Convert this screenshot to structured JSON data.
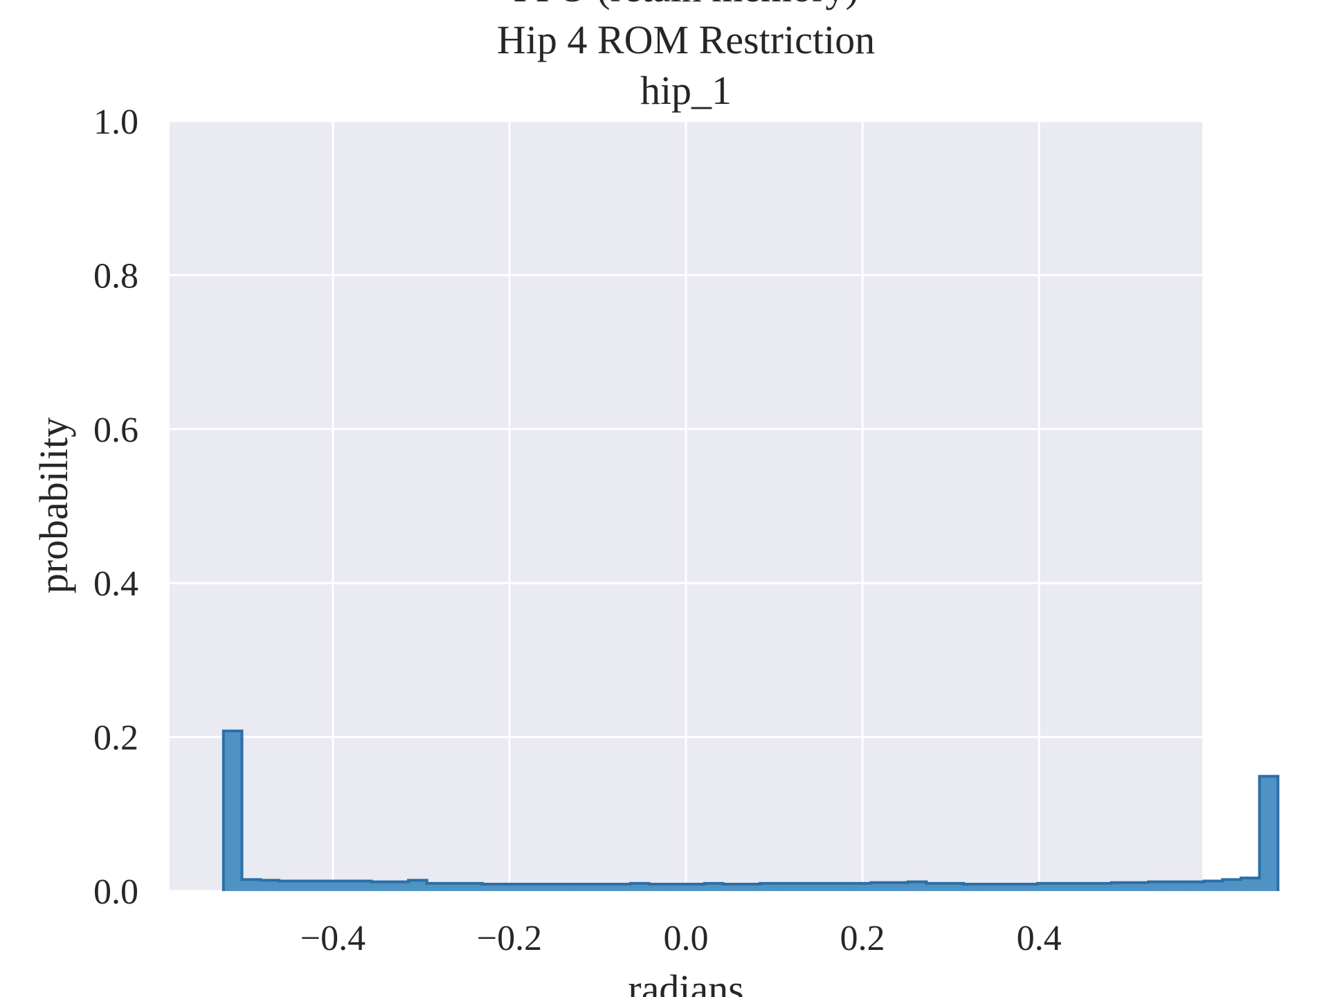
{
  "chart_data": {
    "type": "bar",
    "subtype": "step-histogram",
    "title_lines": [
      "PPO (retain memory)",
      "Hip 4 ROM Restriction",
      "hip_1"
    ],
    "xlabel": "radians",
    "ylabel": "probability",
    "xlim": [
      -0.585,
      0.585
    ],
    "ylim": [
      0.0,
      1.0
    ],
    "xticks": [
      -0.4,
      -0.2,
      0.0,
      0.2,
      0.4
    ],
    "xtick_labels": [
      "−0.4",
      "−0.2",
      "0.0",
      "0.2",
      "0.4"
    ],
    "yticks": [
      0.0,
      0.2,
      0.4,
      0.6,
      0.8,
      1.0
    ],
    "ytick_labels": [
      "0.0",
      "0.2",
      "0.4",
      "0.6",
      "0.8",
      "1.0"
    ],
    "grid": true,
    "bin_start": -0.524,
    "bin_width": 0.02096,
    "values": [
      0.208,
      0.015,
      0.014,
      0.013,
      0.013,
      0.013,
      0.013,
      0.013,
      0.012,
      0.012,
      0.014,
      0.01,
      0.01,
      0.01,
      0.009,
      0.009,
      0.009,
      0.009,
      0.009,
      0.009,
      0.009,
      0.009,
      0.01,
      0.009,
      0.009,
      0.009,
      0.01,
      0.009,
      0.009,
      0.01,
      0.01,
      0.01,
      0.01,
      0.01,
      0.01,
      0.011,
      0.011,
      0.012,
      0.01,
      0.01,
      0.009,
      0.009,
      0.009,
      0.009,
      0.01,
      0.01,
      0.01,
      0.01,
      0.011,
      0.011,
      0.012,
      0.012,
      0.012,
      0.013,
      0.015,
      0.017,
      0.149
    ],
    "colors": {
      "background": "#eaeaf2",
      "grid": "#ffffff",
      "bar_fill": "#4f93c4",
      "bar_edge": "#2a6fa8"
    }
  }
}
